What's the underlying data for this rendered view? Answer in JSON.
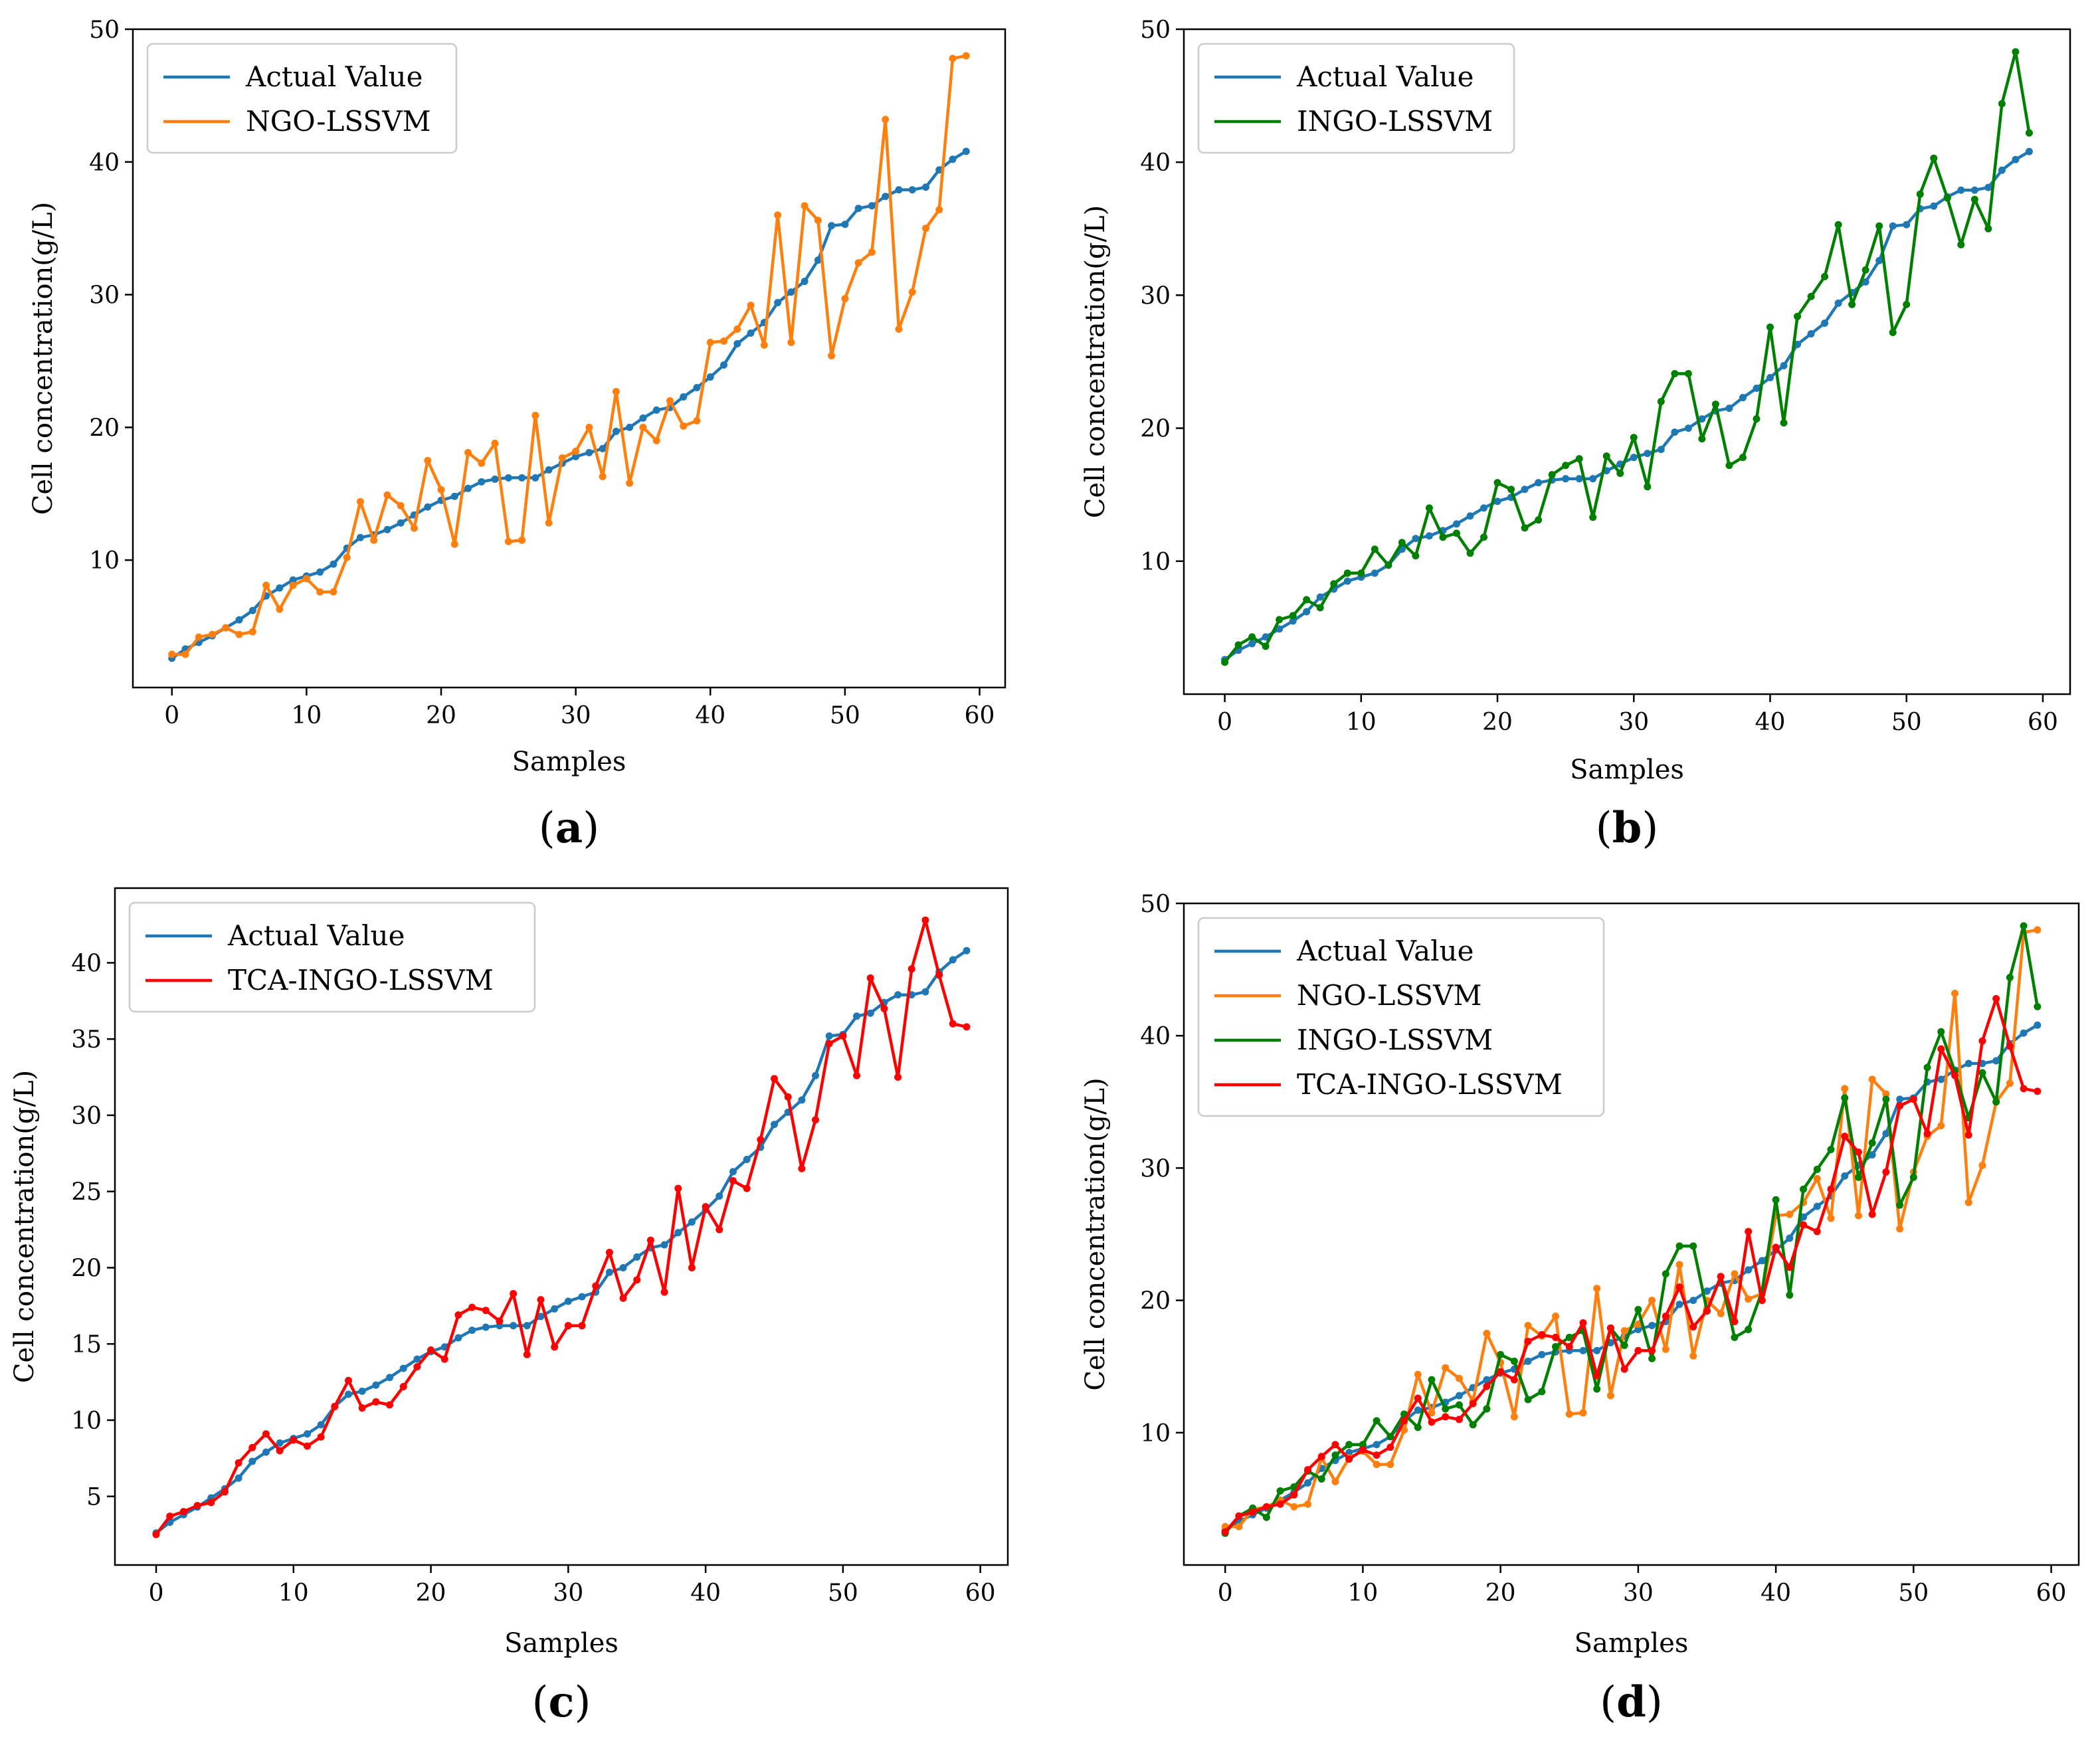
{
  "chart_data": [
    {
      "type": "line",
      "panel_label": "a",
      "xlabel": "Samples",
      "ylabel": "Cell concentration(g/L)",
      "xlim": [
        -2.9,
        61.9
      ],
      "ylim": [
        0.4,
        50.0
      ],
      "xticks": [
        0,
        10,
        20,
        30,
        40,
        50,
        60
      ],
      "yticks": [
        10,
        20,
        30,
        40,
        50
      ],
      "legend_position": "top-left",
      "series": [
        {
          "name": "Actual Value",
          "color": "#1f77b4",
          "ref": "actual"
        },
        {
          "name": "NGO-LSSVM",
          "color": "#ff7f0e",
          "ref": "ngo"
        }
      ]
    },
    {
      "type": "line",
      "panel_label": "b",
      "xlabel": "Samples",
      "ylabel": "Cell concentration(g/L)",
      "xlim": [
        -3.0,
        62.0
      ],
      "ylim": [
        0.0,
        50.0
      ],
      "xticks": [
        0,
        10,
        20,
        30,
        40,
        50,
        60
      ],
      "yticks": [
        10,
        20,
        30,
        40,
        50
      ],
      "legend_position": "top-left",
      "series": [
        {
          "name": "Actual Value",
          "color": "#1f77b4",
          "ref": "actual"
        },
        {
          "name": "INGO-LSSVM",
          "color": "#008000",
          "ref": "ingo"
        }
      ]
    },
    {
      "type": "line",
      "panel_label": "c",
      "xlabel": "Samples",
      "ylabel": "Cell concentration(g/L)",
      "xlim": [
        -3.0,
        62.0
      ],
      "ylim": [
        0.5,
        44.9
      ],
      "xticks": [
        0,
        10,
        20,
        30,
        40,
        50,
        60
      ],
      "yticks": [
        5,
        10,
        15,
        20,
        25,
        30,
        35,
        40
      ],
      "legend_position": "top-left",
      "series": [
        {
          "name": "Actual Value",
          "color": "#1f77b4",
          "ref": "actual"
        },
        {
          "name": "TCA-INGO-LSSVM",
          "color": "#ff0000",
          "ref": "tca"
        }
      ]
    },
    {
      "type": "line",
      "panel_label": "d",
      "xlabel": "Samples",
      "ylabel": "Cell concentration(g/L)",
      "xlim": [
        -3.0,
        62.0
      ],
      "ylim": [
        0.0,
        50.0
      ],
      "xticks": [
        0,
        10,
        20,
        30,
        40,
        50,
        60
      ],
      "yticks": [
        10,
        20,
        30,
        40,
        50
      ],
      "legend_position": "top-left",
      "series": [
        {
          "name": "Actual Value",
          "color": "#1f77b4",
          "ref": "actual"
        },
        {
          "name": "NGO-LSSVM",
          "color": "#ff7f0e",
          "ref": "ngo"
        },
        {
          "name": "INGO-LSSVM",
          "color": "#008000",
          "ref": "ingo"
        },
        {
          "name": "TCA-INGO-LSSVM",
          "color": "#ff0000",
          "ref": "tca"
        }
      ]
    }
  ],
  "values": {
    "actual": [
      2.6,
      3.3,
      3.8,
      4.3,
      4.9,
      5.5,
      6.2,
      7.3,
      7.9,
      8.5,
      8.8,
      9.1,
      9.7,
      10.9,
      11.7,
      11.9,
      12.3,
      12.8,
      13.4,
      14.0,
      14.5,
      14.8,
      15.4,
      15.9,
      16.1,
      16.2,
      16.2,
      16.2,
      16.8,
      17.3,
      17.8,
      18.1,
      18.4,
      19.7,
      20.0,
      20.7,
      21.3,
      21.5,
      22.3,
      23.0,
      23.8,
      24.7,
      26.3,
      27.1,
      27.9,
      29.4,
      30.2,
      31.0,
      32.6,
      35.2,
      35.3,
      36.5,
      36.7,
      37.4,
      37.9,
      37.9,
      38.1,
      39.4,
      40.2,
      40.8
    ],
    "ngo": [
      2.9,
      2.9,
      4.2,
      4.4,
      4.9,
      4.4,
      4.6,
      8.1,
      6.3,
      8.1,
      8.6,
      7.6,
      7.6,
      10.2,
      14.4,
      11.5,
      14.9,
      14.1,
      12.4,
      17.5,
      15.3,
      11.2,
      18.1,
      17.3,
      18.8,
      11.4,
      11.5,
      20.9,
      12.8,
      17.7,
      18.2,
      20.0,
      16.3,
      22.7,
      15.8,
      20.0,
      19.0,
      22.0,
      20.1,
      20.5,
      26.4,
      26.5,
      27.4,
      29.2,
      26.2,
      36.0,
      26.4,
      36.7,
      35.6,
      25.4,
      29.7,
      32.4,
      33.2,
      43.2,
      27.4,
      30.2,
      35.0,
      36.4,
      47.8,
      48.0
    ],
    "ingo": [
      2.4,
      3.7,
      4.3,
      3.6,
      5.6,
      5.9,
      7.1,
      6.5,
      8.3,
      9.1,
      9.1,
      10.9,
      9.7,
      11.4,
      10.4,
      14.0,
      11.8,
      12.1,
      10.6,
      11.8,
      15.9,
      15.4,
      12.5,
      13.1,
      16.5,
      17.2,
      17.7,
      13.3,
      17.9,
      16.6,
      19.3,
      15.6,
      22.0,
      24.1,
      24.1,
      19.2,
      21.8,
      17.2,
      17.8,
      20.7,
      27.6,
      20.4,
      28.4,
      29.9,
      31.4,
      35.3,
      29.3,
      31.9,
      35.2,
      27.2,
      29.3,
      37.6,
      40.3,
      37.3,
      33.8,
      37.2,
      35.0,
      44.4,
      48.3,
      42.2
    ],
    "tca": [
      2.5,
      3.7,
      4.0,
      4.4,
      4.6,
      5.3,
      7.2,
      8.2,
      9.1,
      8.0,
      8.7,
      8.3,
      8.9,
      10.9,
      12.6,
      10.8,
      11.2,
      11.0,
      12.2,
      13.5,
      14.6,
      14.0,
      16.9,
      17.4,
      17.2,
      16.5,
      18.3,
      14.3,
      17.9,
      14.8,
      16.2,
      16.2,
      18.8,
      21.0,
      18.0,
      19.2,
      21.8,
      18.4,
      25.2,
      20.0,
      24.0,
      22.5,
      25.7,
      25.2,
      28.4,
      32.4,
      31.2,
      26.5,
      29.7,
      34.7,
      35.2,
      32.6,
      39.0,
      37.0,
      32.5,
      39.6,
      42.8,
      39.2,
      36.0,
      35.8
    ]
  }
}
